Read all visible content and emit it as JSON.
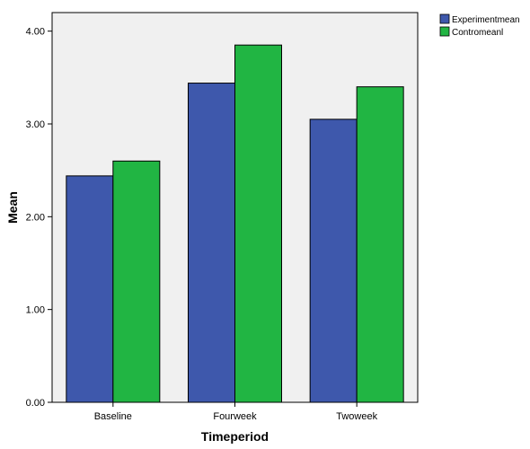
{
  "colors": {
    "plot_background": "#f0f0f0",
    "series_experiment": "#3e58ac",
    "series_control": "#21b543",
    "axis": "#000000"
  },
  "chart_data": {
    "type": "bar",
    "title": "",
    "xlabel": "Timeperiod",
    "ylabel": "Mean",
    "categories": [
      "Baseline",
      "Fourweek",
      "Twoweek"
    ],
    "series": [
      {
        "name": "Experimentmean",
        "values": [
          2.44,
          3.44,
          3.05
        ],
        "color": "#3e58ac"
      },
      {
        "name": "Contromeanl",
        "values": [
          2.6,
          3.85,
          3.4
        ],
        "color": "#21b543"
      }
    ],
    "ylim": [
      0,
      4.2
    ],
    "yticks": [
      0,
      1,
      2,
      3,
      4
    ],
    "ytick_labels": [
      "0.00",
      "1.00",
      "2.00",
      "3.00",
      "4.00"
    ],
    "grid": false,
    "legend_position": "top-right, outside plot"
  }
}
